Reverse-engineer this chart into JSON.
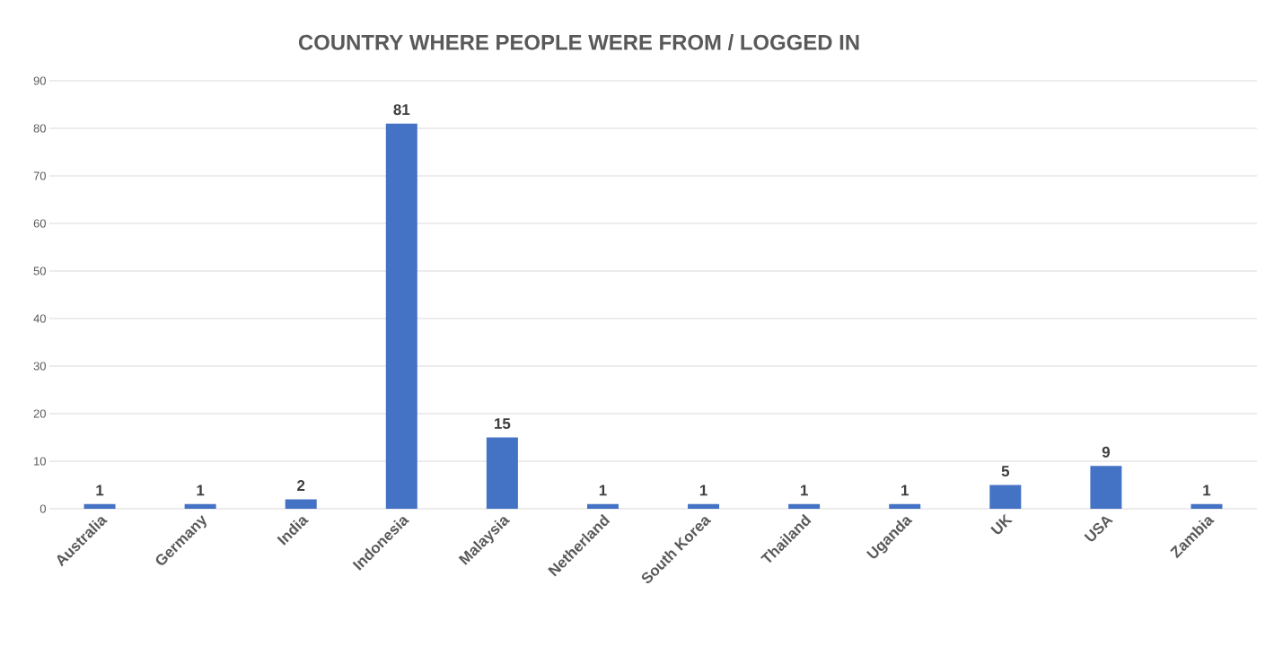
{
  "chart_data": {
    "type": "bar",
    "title": "COUNTRY WHERE PEOPLE WERE FROM / LOGGED IN",
    "categories": [
      "Australia",
      "Germany",
      "India",
      "Indonesia",
      "Malaysia",
      "Netherland",
      "South Korea",
      "Thailand",
      "Uganda",
      "UK",
      "USA",
      "Zambia"
    ],
    "values": [
      1,
      1,
      2,
      81,
      15,
      1,
      1,
      1,
      1,
      5,
      9,
      1
    ],
    "color": "#4472c4",
    "ylim": [
      0,
      90
    ],
    "yticks": [
      0,
      10,
      20,
      30,
      40,
      50,
      60,
      70,
      80,
      90
    ],
    "grid": "y",
    "data_labels": true
  }
}
